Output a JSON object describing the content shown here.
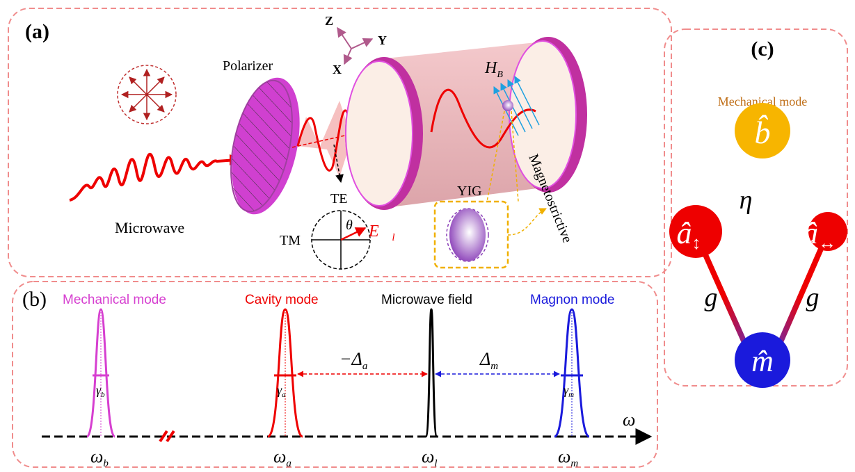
{
  "panel_a": {
    "label": "(a)",
    "axes": {
      "z": "Z",
      "y": "Y",
      "x": "X"
    },
    "polarizer": "Polarizer",
    "field": {
      "symbol": "H",
      "sub": "B"
    },
    "microwave": "Microwave",
    "te": "TE",
    "tm": "TM",
    "theta": "θ",
    "e_field": {
      "symbol": "E⃗",
      "sub": "l"
    },
    "yig": "YIG",
    "magnetostrictive": "Magnetostrictive"
  },
  "panel_b": {
    "label": "(b)",
    "modes": [
      {
        "name": "Mechanical mode",
        "width": {
          "symbol": "γ",
          "sub": "b"
        },
        "freq": {
          "symbol": "ω",
          "sub": "b"
        }
      },
      {
        "name": "Cavity mode",
        "width": {
          "symbol": "γ",
          "sub": "a"
        },
        "freq": {
          "symbol": "ω",
          "sub": "a"
        }
      },
      {
        "name": "Microwave field",
        "freq": {
          "symbol": "ω",
          "sub": "l"
        }
      },
      {
        "name": "Magnon mode",
        "width": {
          "symbol": "γ",
          "sub": "m"
        },
        "freq": {
          "symbol": "ω",
          "sub": "m"
        }
      }
    ],
    "detunings": [
      {
        "symbol": "−Δ",
        "sub": "a"
      },
      {
        "symbol": "Δ",
        "sub": "m"
      }
    ],
    "axis": "ω"
  },
  "panel_c": {
    "label": "(c)",
    "title": "Mechanical mode",
    "nodes": [
      {
        "symbol": "b̂"
      },
      {
        "symbol": "â",
        "sub": "↕"
      },
      {
        "symbol": "â",
        "sub": "↔"
      },
      {
        "symbol": "m̂"
      }
    ],
    "couplings": [
      "η",
      "g",
      "g"
    ]
  }
}
